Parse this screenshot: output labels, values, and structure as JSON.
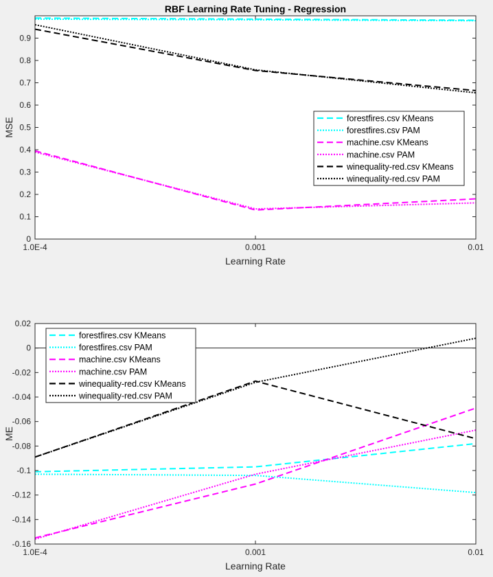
{
  "chart_data": [
    {
      "type": "line",
      "title": "RBF Learning Rate Tuning - Regression",
      "xlabel": "Learning Rate",
      "ylabel": "MSE",
      "xscale": "log",
      "xlim": [
        0.0001,
        0.01
      ],
      "ylim": [
        0,
        1
      ],
      "x": [
        0.0001,
        0.001,
        0.01
      ],
      "xtick_labels": [
        "1.0E-4",
        "0.001",
        "0.01"
      ],
      "yticks": [
        0,
        0.1,
        0.2,
        0.3,
        0.4,
        0.5,
        0.6,
        0.7,
        0.8,
        0.9
      ],
      "ytick_labels": [
        "0",
        "0.1",
        "0.2",
        "0.3",
        "0.4",
        "0.5",
        "0.6",
        "0.7",
        "0.8",
        "0.9"
      ],
      "legend_position": "right",
      "grid": false,
      "series": [
        {
          "name": "forestfires.csv KMeans",
          "color": "#00ffff",
          "style": "dashed",
          "values": [
            0.99,
            0.985,
            0.98
          ]
        },
        {
          "name": "forestfires.csv PAM",
          "color": "#00ffff",
          "style": "dotted",
          "values": [
            0.985,
            0.982,
            0.978
          ]
        },
        {
          "name": "machine.csv KMeans",
          "color": "#ff00ff",
          "style": "dashed",
          "values": [
            0.395,
            0.13,
            0.18
          ]
        },
        {
          "name": "machine.csv PAM",
          "color": "#ff00ff",
          "style": "dotted",
          "values": [
            0.39,
            0.135,
            0.162
          ]
        },
        {
          "name": "winequality-red.csv KMeans",
          "color": "#000000",
          "style": "dashed",
          "values": [
            0.94,
            0.755,
            0.665
          ]
        },
        {
          "name": "winequality-red.csv PAM",
          "color": "#000000",
          "style": "dotted",
          "values": [
            0.96,
            0.758,
            0.655
          ]
        }
      ]
    },
    {
      "type": "line",
      "title": "",
      "xlabel": "Learning Rate",
      "ylabel": "ME",
      "xscale": "log",
      "xlim": [
        0.0001,
        0.01
      ],
      "ylim": [
        -0.16,
        0.02
      ],
      "x": [
        0.0001,
        0.001,
        0.01
      ],
      "xtick_labels": [
        "1.0E-4",
        "0.001",
        "0.01"
      ],
      "yticks": [
        -0.16,
        -0.14,
        -0.12,
        -0.1,
        -0.08,
        -0.06,
        -0.04,
        -0.02,
        0,
        0.02
      ],
      "ytick_labels": [
        "-0.16",
        "-0.14",
        "-0.12",
        "-0.1",
        "-0.08",
        "-0.06",
        "-0.04",
        "-0.02",
        "0",
        "0.02"
      ],
      "zero_line": true,
      "legend_position": "top-left",
      "grid": false,
      "series": [
        {
          "name": "forestfires.csv KMeans",
          "color": "#00ffff",
          "style": "dashed",
          "values": [
            -0.101,
            -0.097,
            -0.078
          ]
        },
        {
          "name": "forestfires.csv PAM",
          "color": "#00ffff",
          "style": "dotted",
          "values": [
            -0.103,
            -0.104,
            -0.118
          ]
        },
        {
          "name": "machine.csv KMeans",
          "color": "#ff00ff",
          "style": "dashed",
          "values": [
            -0.155,
            -0.111,
            -0.049
          ]
        },
        {
          "name": "machine.csv PAM",
          "color": "#ff00ff",
          "style": "dotted",
          "values": [
            -0.156,
            -0.103,
            -0.067
          ]
        },
        {
          "name": "winequality-red.csv KMeans",
          "color": "#000000",
          "style": "dashed",
          "values": [
            -0.089,
            -0.027,
            -0.074
          ]
        },
        {
          "name": "winequality-red.csv PAM",
          "color": "#000000",
          "style": "dotted",
          "values": [
            -0.089,
            -0.028,
            0.008
          ]
        }
      ]
    }
  ]
}
